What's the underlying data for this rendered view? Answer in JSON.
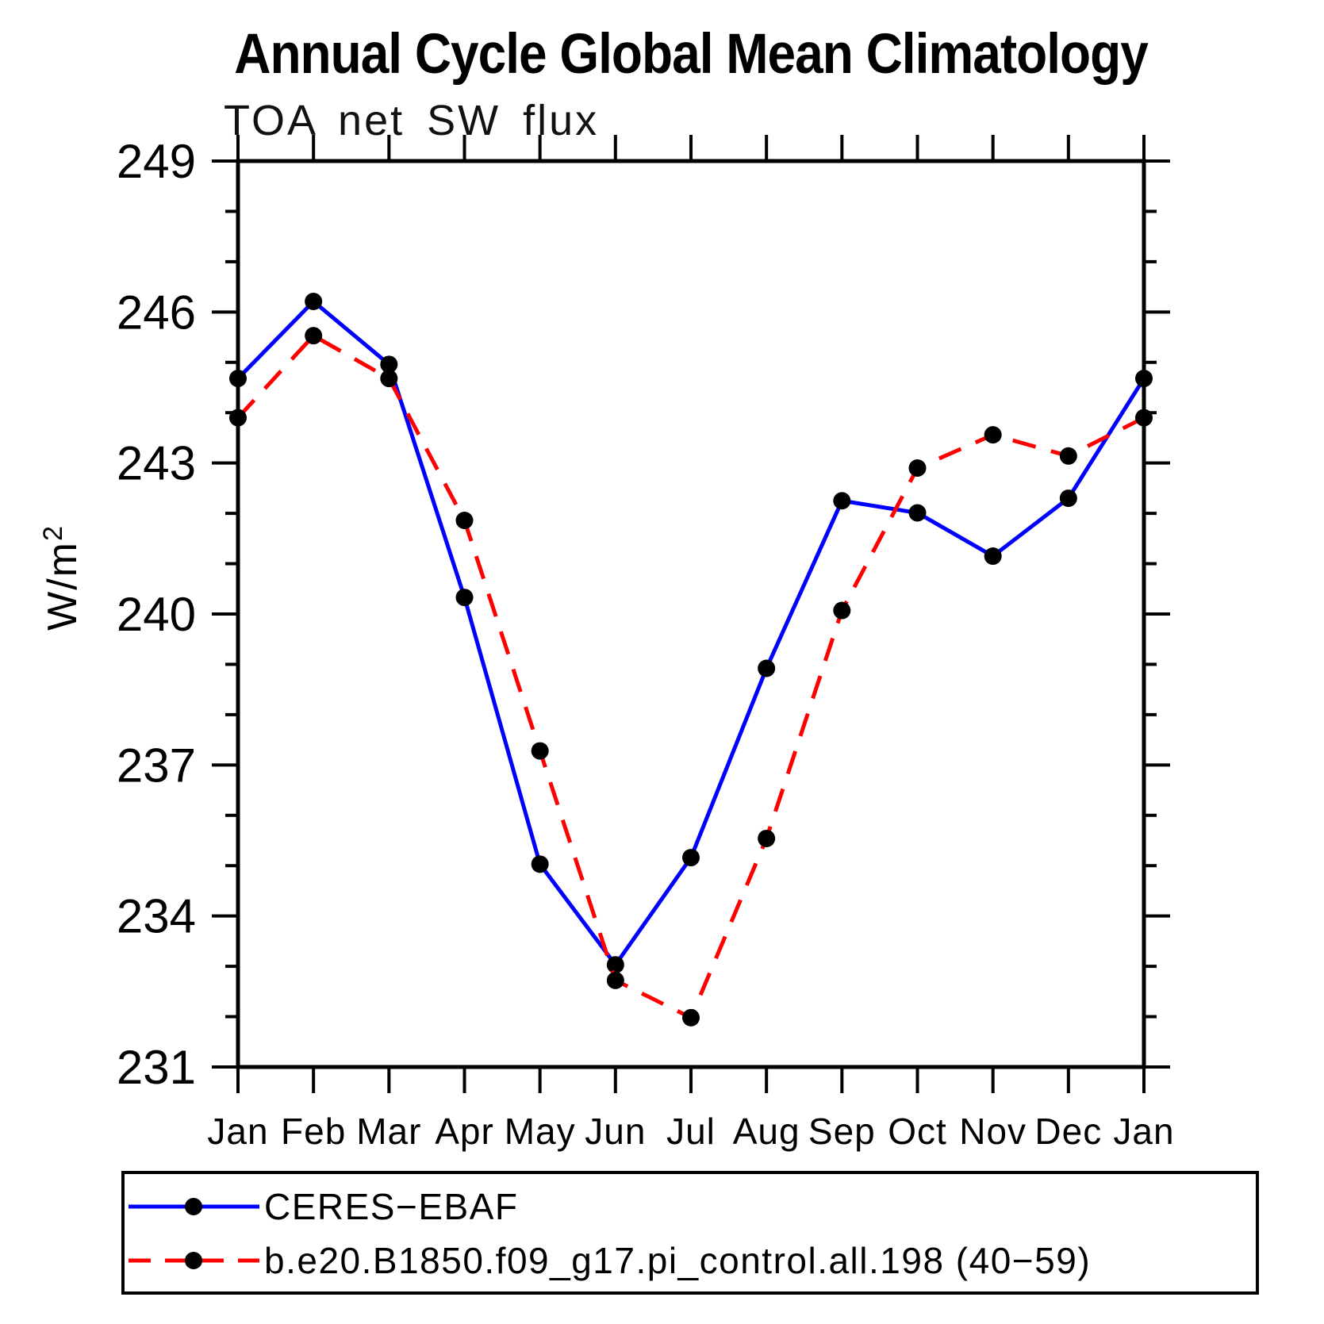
{
  "header": {
    "title": "Annual Cycle Global Mean Climatology"
  },
  "chart_data": {
    "type": "line",
    "title": "Annual Cycle Global Mean Climatology",
    "subtitle": "TOA net SW flux",
    "ylabel": "W/m²",
    "ylabel_base": "W/m",
    "ylabel_superscript": "2",
    "xlabel": "",
    "x_tick_labels": [
      "Jan",
      "Feb",
      "Mar",
      "Apr",
      "May",
      "Jun",
      "Jul",
      "Aug",
      "Sep",
      "Oct",
      "Nov",
      "Dec",
      "Jan"
    ],
    "ylim": [
      231,
      249
    ],
    "y_major_ticks": [
      231,
      234,
      237,
      240,
      243,
      246,
      249
    ],
    "y_minor_tick_step": 1,
    "grid": false,
    "legend_position": "bottom-left-box",
    "axis_color": "#000000",
    "marker_shape": "filled-circle",
    "series": [
      {
        "name": "CERES−EBAF",
        "line_color": "#0000ff",
        "line_style": "solid",
        "marker_color": "#000000",
        "values": [
          244.68,
          246.21,
          244.96,
          240.33,
          235.03,
          233.03,
          235.16,
          238.92,
          242.25,
          242.01,
          241.15,
          242.3,
          244.68
        ]
      },
      {
        "name": "b.e20.B1850.f09_g17.pi_control.all.198 (40−59)",
        "line_color": "#ff0000",
        "line_style": "dashed",
        "marker_color": "#000000",
        "values": [
          243.9,
          245.53,
          244.68,
          241.86,
          237.28,
          232.72,
          231.98,
          235.54,
          240.07,
          242.9,
          243.56,
          243.14,
          243.9
        ]
      }
    ]
  }
}
